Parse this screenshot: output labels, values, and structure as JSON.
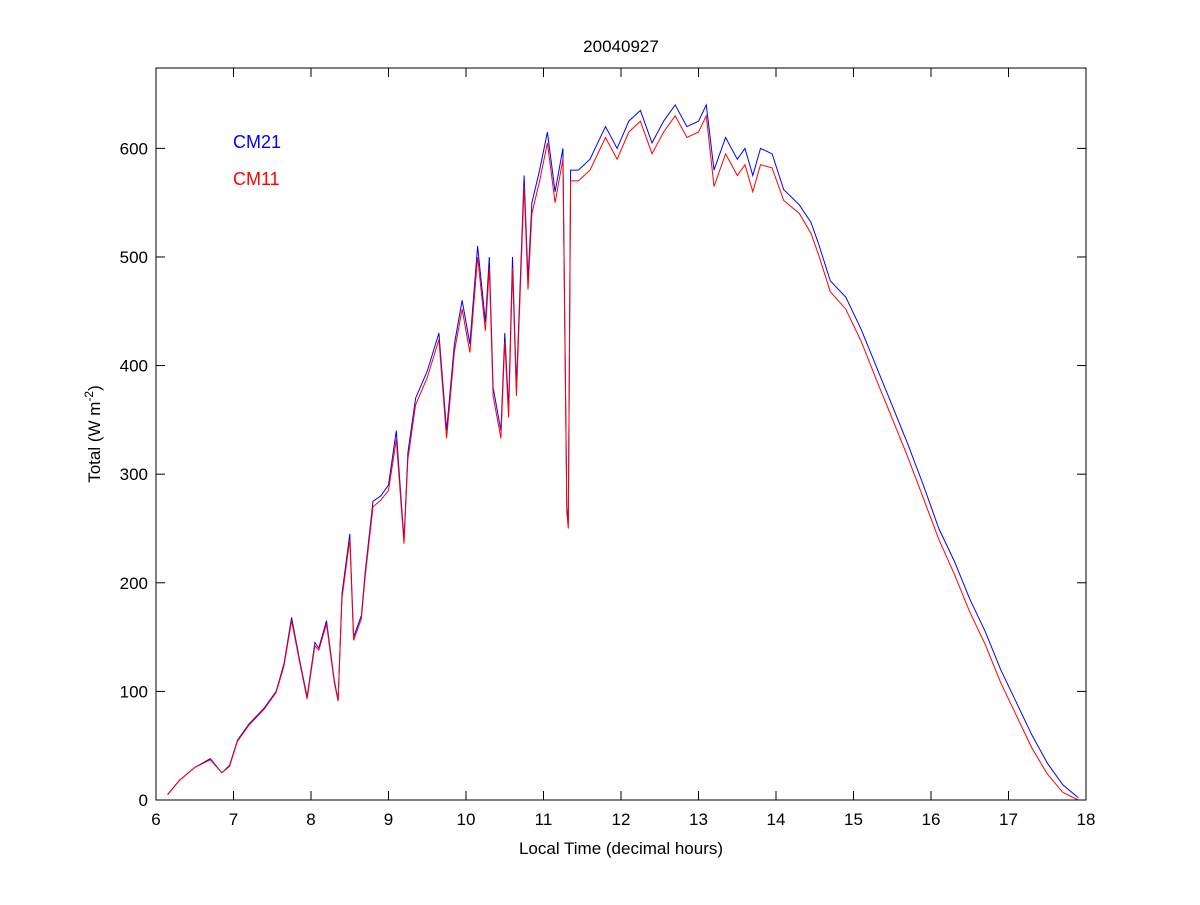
{
  "chart_data": {
    "type": "line",
    "title": "20040927",
    "xlabel": "Local Time (decimal hours)",
    "ylabel_main": "Total (W m",
    "ylabel_sup": "-2",
    "ylabel_close": ")",
    "xlim": [
      6,
      18
    ],
    "ylim": [
      0,
      674
    ],
    "xticks": [
      6,
      7,
      8,
      9,
      10,
      11,
      12,
      13,
      14,
      15,
      16,
      17,
      18
    ],
    "yticks": [
      0,
      100,
      200,
      300,
      400,
      500,
      600
    ],
    "legend_placement": "top-left",
    "series": [
      {
        "name": "CM21",
        "color": "#0000ff",
        "x": [
          6.15,
          6.3,
          6.5,
          6.7,
          6.85,
          6.95,
          7.05,
          7.2,
          7.4,
          7.55,
          7.65,
          7.75,
          7.85,
          7.95,
          8.05,
          8.1,
          8.2,
          8.3,
          8.35,
          8.4,
          8.5,
          8.55,
          8.65,
          8.7,
          8.8,
          8.9,
          9.0,
          9.1,
          9.15,
          9.2,
          9.25,
          9.35,
          9.5,
          9.65,
          9.75,
          9.85,
          9.95,
          10.05,
          10.15,
          10.25,
          10.3,
          10.35,
          10.45,
          10.5,
          10.55,
          10.6,
          10.65,
          10.75,
          10.8,
          10.85,
          10.95,
          11.05,
          11.15,
          11.25,
          11.3,
          11.32,
          11.35,
          11.45,
          11.6,
          11.8,
          11.95,
          12.1,
          12.25,
          12.4,
          12.55,
          12.7,
          12.85,
          13.0,
          13.1,
          13.2,
          13.35,
          13.5,
          13.6,
          13.7,
          13.8,
          13.95,
          14.1,
          14.3,
          14.45,
          14.55,
          14.7,
          14.9,
          15.1,
          15.3,
          15.5,
          15.7,
          15.9,
          16.1,
          16.3,
          16.5,
          16.7,
          16.9,
          17.1,
          17.3,
          17.5,
          17.7,
          17.9
        ],
        "y": [
          5,
          18,
          30,
          38,
          25,
          32,
          55,
          70,
          85,
          100,
          125,
          168,
          130,
          95,
          145,
          140,
          165,
          110,
          92,
          190,
          245,
          150,
          170,
          210,
          275,
          280,
          290,
          340,
          290,
          240,
          320,
          370,
          395,
          430,
          340,
          420,
          460,
          420,
          510,
          440,
          500,
          380,
          340,
          430,
          360,
          500,
          380,
          575,
          480,
          550,
          580,
          615,
          560,
          600,
          270,
          255,
          580,
          580,
          590,
          620,
          600,
          625,
          635,
          605,
          625,
          640,
          620,
          625,
          640,
          580,
          610,
          590,
          600,
          575,
          600,
          595,
          562,
          548,
          532,
          512,
          478,
          463,
          433,
          398,
          363,
          328,
          290,
          250,
          220,
          185,
          155,
          120,
          90,
          60,
          34,
          14,
          2
        ]
      },
      {
        "name": "CM11",
        "color": "#ff0000",
        "x": [
          6.15,
          6.3,
          6.5,
          6.7,
          6.85,
          6.95,
          7.05,
          7.2,
          7.4,
          7.55,
          7.65,
          7.75,
          7.85,
          7.95,
          8.05,
          8.1,
          8.2,
          8.3,
          8.35,
          8.4,
          8.5,
          8.55,
          8.65,
          8.7,
          8.8,
          8.9,
          9.0,
          9.1,
          9.15,
          9.2,
          9.25,
          9.35,
          9.5,
          9.65,
          9.75,
          9.85,
          9.95,
          10.05,
          10.15,
          10.25,
          10.3,
          10.35,
          10.45,
          10.5,
          10.55,
          10.6,
          10.65,
          10.75,
          10.8,
          10.85,
          10.95,
          11.05,
          11.15,
          11.25,
          11.3,
          11.32,
          11.35,
          11.45,
          11.6,
          11.8,
          11.95,
          12.1,
          12.25,
          12.4,
          12.55,
          12.7,
          12.85,
          13.0,
          13.1,
          13.2,
          13.35,
          13.5,
          13.6,
          13.7,
          13.8,
          13.95,
          14.1,
          14.3,
          14.45,
          14.55,
          14.7,
          14.9,
          15.1,
          15.3,
          15.5,
          15.7,
          15.9,
          16.1,
          16.3,
          16.5,
          16.7,
          16.9,
          17.1,
          17.3,
          17.5,
          17.7,
          17.9
        ],
        "y": [
          5,
          18,
          30,
          37,
          25,
          31,
          54,
          69,
          84,
          99,
          123,
          165,
          128,
          93,
          142,
          138,
          162,
          108,
          91,
          186,
          240,
          147,
          167,
          206,
          270,
          276,
          285,
          332,
          284,
          236,
          314,
          364,
          389,
          424,
          333,
          413,
          452,
          412,
          500,
          432,
          490,
          372,
          333,
          422,
          352,
          490,
          372,
          565,
          470,
          540,
          570,
          605,
          550,
          590,
          265,
          250,
          570,
          570,
          580,
          610,
          590,
          615,
          625,
          595,
          615,
          630,
          610,
          615,
          630,
          565,
          595,
          575,
          585,
          560,
          585,
          582,
          552,
          540,
          522,
          502,
          468,
          452,
          422,
          386,
          351,
          316,
          278,
          240,
          208,
          173,
          143,
          108,
          78,
          48,
          24,
          7,
          0
        ]
      }
    ]
  }
}
